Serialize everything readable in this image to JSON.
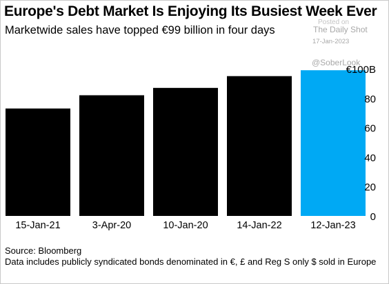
{
  "title": "Europe's Debt Market Is Enjoying Its Busiest Week Ever",
  "subtitle": "Marketwide sales have topped €99 billion in four days",
  "watermark": {
    "posted": "Posted on",
    "name": "The Daily Shot",
    "date": "17-Jan-2023",
    "handle": "@SoberLook"
  },
  "footer": {
    "source": "Source: Bloomberg",
    "note": "Data includes publicly syndicated bonds denominated in €, £ and Reg S only $ sold in Europe"
  },
  "colors": {
    "bar": "#000000",
    "highlight": "#00a9f4",
    "text": "#000000"
  },
  "chart_data": {
    "type": "bar",
    "title": "Europe's Debt Market Is Enjoying Its Busiest Week Ever",
    "subtitle": "Marketwide sales have topped €99 billion in four days",
    "categories": [
      "15-Jan-21",
      "3-Apr-20",
      "10-Jan-20",
      "14-Jan-22",
      "12-Jan-23"
    ],
    "values": [
      73,
      82,
      87,
      95,
      99
    ],
    "highlight_index": 4,
    "ylim": [
      0,
      100
    ],
    "yticks": [
      0,
      20,
      40,
      60,
      80,
      100
    ],
    "ytick_labels": [
      "0",
      "20",
      "40",
      "60",
      "80",
      "€100B"
    ],
    "yaxis_position": "right",
    "grid": false,
    "xlabel": "",
    "ylabel": ""
  }
}
